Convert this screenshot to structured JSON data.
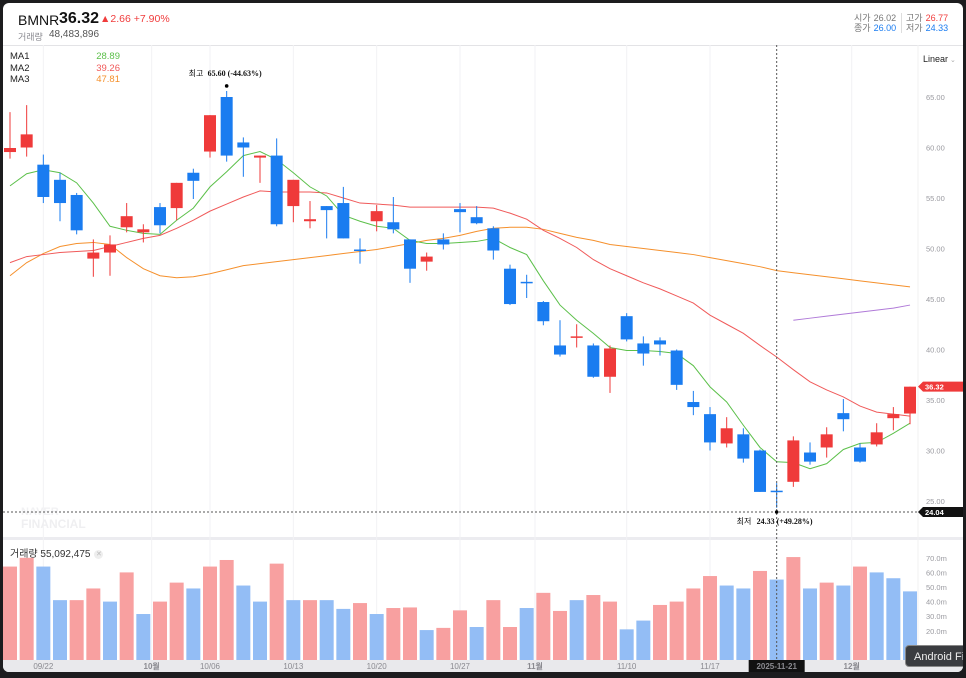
{
  "header": {
    "symbol": "BMNR",
    "price": "36.32",
    "change": "▲2.66 +7.90%",
    "volume_label": "거래량",
    "volume_value": "48,483,896",
    "open_label": "시가",
    "open_value": "26.02",
    "high_label": "고가",
    "high_value": "26.77",
    "close_label": "종가",
    "close_value": "26.00",
    "low_label": "저가",
    "low_value": "24.33"
  },
  "legend": [
    {
      "label": "MA1",
      "value": "28.89",
      "color": "#5cc04a"
    },
    {
      "label": "MA2",
      "value": "39.26",
      "color": "#f05a5a"
    },
    {
      "label": "MA3",
      "value": "47.81",
      "color": "#f5902c"
    }
  ],
  "scale_mode": "Linear",
  "annotations": {
    "high_label": "최고",
    "high_text": "65.60 (-44.63%)",
    "low_label": "최저",
    "low_text": "24.33 (+49.28%)"
  },
  "price_tag": "36.32",
  "crosshair_price": "24.04",
  "crosshair_date": "2025-11-21",
  "watermark": "NAVER FINANCIAL",
  "volume_header": {
    "label": "거래량",
    "value": "55,092,475"
  },
  "tooltip": "Android Fi",
  "colors": {
    "up": "#ef3a3a",
    "down": "#1a7cf0",
    "vol_up": "#f8a0a0",
    "vol_down": "#93bdf5",
    "ma4": "#b07ad8"
  },
  "chart_data": {
    "type": "candlestick",
    "y_ticks": [
      "65.00",
      "60.00",
      "55.00",
      "50.00",
      "45.00",
      "40.00",
      "35.00",
      "30.00",
      "25.00"
    ],
    "y_range": [
      24,
      68
    ],
    "volume_ticks": [
      "70.0m",
      "60.0m",
      "50.0m",
      "40.0m",
      "30.0m",
      "20.0m"
    ],
    "x_labels": [
      {
        "index": 2,
        "text": "09/22",
        "bold": false
      },
      {
        "index": 8.5,
        "text": "10월",
        "bold": true
      },
      {
        "index": 12,
        "text": "10/06",
        "bold": false
      },
      {
        "index": 17,
        "text": "10/13",
        "bold": false
      },
      {
        "index": 22,
        "text": "10/20",
        "bold": false
      },
      {
        "index": 27,
        "text": "10/27",
        "bold": false
      },
      {
        "index": 31.5,
        "text": "11월",
        "bold": true
      },
      {
        "index": 37,
        "text": "11/10",
        "bold": false
      },
      {
        "index": 42,
        "text": "11/17",
        "bold": false
      },
      {
        "index": 50.5,
        "text": "12월",
        "bold": true
      }
    ],
    "crosshair_index": 46,
    "high_index": 13,
    "low_index": 46,
    "ohlc": [
      [
        59.55,
        63.5,
        58.9,
        59.95
      ],
      [
        60.0,
        64.2,
        59.1,
        61.3
      ],
      [
        58.3,
        59.3,
        54.5,
        55.1
      ],
      [
        56.8,
        57.5,
        52.7,
        54.5
      ],
      [
        55.3,
        55.5,
        51.4,
        51.8
      ],
      [
        49.0,
        50.9,
        47.2,
        49.6
      ],
      [
        49.6,
        51.3,
        47.3,
        50.4
      ],
      [
        52.1,
        54.5,
        51.6,
        53.2
      ],
      [
        51.6,
        52.4,
        50.6,
        51.9
      ],
      [
        54.1,
        54.5,
        51.5,
        52.3
      ],
      [
        54.0,
        56.5,
        52.8,
        56.5
      ],
      [
        57.5,
        57.9,
        54.9,
        56.7
      ],
      [
        59.6,
        63.2,
        59.0,
        63.2
      ],
      [
        65.0,
        65.6,
        58.6,
        59.2
      ],
      [
        60.5,
        61.0,
        57.1,
        60.0
      ],
      [
        59.0,
        59.2,
        56.5,
        59.2
      ],
      [
        59.2,
        60.9,
        52.2,
        52.4
      ],
      [
        54.2,
        56.8,
        52.6,
        56.8
      ],
      [
        52.7,
        54.7,
        52.0,
        52.9
      ],
      [
        54.2,
        54.2,
        51.0,
        53.8
      ],
      [
        54.5,
        56.1,
        51.0,
        51.0
      ],
      [
        49.9,
        51.0,
        48.5,
        49.8
      ],
      [
        52.7,
        54.3,
        51.7,
        53.7
      ],
      [
        52.6,
        55.1,
        51.5,
        51.9
      ],
      [
        50.9,
        50.9,
        46.6,
        48.0
      ],
      [
        48.7,
        49.6,
        47.8,
        49.2
      ],
      [
        50.9,
        51.5,
        49.9,
        50.4
      ],
      [
        53.9,
        54.5,
        51.6,
        53.6
      ],
      [
        53.1,
        54.2,
        52.4,
        52.5
      ],
      [
        52.0,
        52.2,
        48.9,
        49.8
      ],
      [
        48.0,
        48.4,
        44.4,
        44.5
      ],
      [
        46.7,
        47.4,
        45.1,
        46.6
      ],
      [
        44.7,
        44.8,
        42.4,
        42.8
      ],
      [
        40.4,
        42.9,
        39.3,
        39.5
      ],
      [
        41.2,
        42.5,
        40.2,
        41.3
      ],
      [
        40.4,
        40.6,
        37.2,
        37.3
      ],
      [
        37.3,
        40.4,
        35.7,
        40.1
      ],
      [
        43.3,
        43.6,
        40.8,
        41.0
      ],
      [
        40.6,
        41.3,
        38.4,
        39.6
      ],
      [
        40.9,
        41.2,
        39.4,
        40.5
      ],
      [
        39.9,
        40.0,
        36.0,
        36.5
      ],
      [
        34.8,
        35.9,
        33.5,
        34.3
      ],
      [
        33.6,
        34.3,
        30.0,
        30.8
      ],
      [
        30.7,
        33.3,
        30.3,
        32.2
      ],
      [
        31.6,
        32.2,
        28.8,
        29.2
      ],
      [
        30.0,
        30.1,
        25.9,
        25.9
      ],
      [
        26.02,
        26.77,
        24.33,
        26.0
      ],
      [
        26.9,
        31.4,
        26.4,
        31.0
      ],
      [
        29.8,
        30.8,
        28.6,
        28.9
      ],
      [
        30.3,
        32.3,
        29.3,
        31.6
      ],
      [
        33.7,
        35.1,
        31.9,
        33.1
      ],
      [
        30.3,
        30.7,
        28.8,
        28.9
      ],
      [
        30.6,
        32.7,
        30.4,
        31.8
      ],
      [
        33.2,
        34.3,
        32.0,
        33.6
      ],
      [
        33.66,
        36.32,
        32.6,
        36.32
      ]
    ],
    "ma1": [
      56.2,
      57.4,
      57.8,
      57.5,
      56.5,
      54.5,
      52.2,
      51.8,
      51.5,
      51.4,
      52.8,
      54.0,
      56.1,
      57.6,
      59.2,
      59.6,
      58.8,
      57.5,
      56.1,
      55.2,
      53.3,
      52.7,
      52.2,
      52.0,
      50.8,
      50.5,
      50.5,
      50.6,
      50.7,
      51.0,
      50.1,
      49.4,
      46.8,
      44.4,
      42.9,
      41.6,
      40.2,
      39.9,
      39.9,
      39.8,
      39.6,
      38.4,
      36.3,
      34.8,
      32.5,
      30.3,
      28.89,
      28.8,
      28.2,
      28.7,
      30.1,
      30.7,
      30.8,
      31.7,
      32.7
    ],
    "ma2": [
      48.6,
      49.2,
      49.4,
      49.6,
      49.7,
      49.8,
      50.2,
      50.6,
      51.0,
      51.3,
      52.0,
      52.8,
      53.7,
      54.4,
      55.1,
      55.7,
      55.6,
      55.6,
      55.6,
      55.5,
      55.0,
      54.5,
      54.4,
      54.3,
      54.1,
      54.1,
      54.1,
      54.1,
      54.1,
      54.0,
      53.5,
      52.9,
      51.8,
      51.0,
      50.1,
      48.9,
      48.0,
      47.3,
      46.6,
      46.0,
      45.3,
      44.6,
      43.4,
      42.5,
      41.6,
      40.4,
      39.26,
      38.0,
      36.8,
      36.0,
      35.3,
      34.4,
      33.8,
      33.6,
      33.4
    ],
    "ma3": [
      47.3,
      48.6,
      49.5,
      50.2,
      50.5,
      50.6,
      50.4,
      49.1,
      48.0,
      47.3,
      47.1,
      47.2,
      47.5,
      47.9,
      48.3,
      48.5,
      48.7,
      48.9,
      49.1,
      49.3,
      49.5,
      49.7,
      49.9,
      50.2,
      50.5,
      50.8,
      51.0,
      51.3,
      51.7,
      52.0,
      52.1,
      52.1,
      51.9,
      51.5,
      51.1,
      50.8,
      50.4,
      50.2,
      50.0,
      49.8,
      49.6,
      49.4,
      49.1,
      48.8,
      48.5,
      48.2,
      47.81,
      47.6,
      47.4,
      47.2,
      47.0,
      46.8,
      46.6,
      46.4,
      46.2
    ],
    "ma4": {
      "start_index": 47,
      "values": [
        42.9,
        43.1,
        43.3,
        43.5,
        43.7,
        43.9,
        44.1,
        44.4
      ]
    },
    "volume_m": [
      64,
      70,
      64,
      41,
      41,
      49,
      40,
      60,
      31.5,
      40,
      53,
      49,
      64,
      68.5,
      51,
      40,
      66,
      41,
      41,
      41,
      35,
      39,
      31.5,
      35.6,
      36,
      20.5,
      22,
      34,
      22.6,
      41,
      22.6,
      35.6,
      46,
      33.6,
      41,
      44.5,
      40,
      21,
      27,
      37.7,
      40,
      49,
      57.5,
      51,
      49,
      61,
      55.1,
      70.5,
      49,
      53,
      51,
      64,
      60,
      56,
      47
    ],
    "volume_up": [
      1,
      1,
      0,
      0,
      1,
      1,
      0,
      1,
      0,
      1,
      1,
      0,
      1,
      1,
      0,
      0,
      1,
      0,
      1,
      0,
      0,
      1,
      0,
      1,
      1,
      0,
      1,
      1,
      0,
      1,
      1,
      0,
      1,
      1,
      0,
      1,
      1,
      0,
      0,
      1,
      1,
      1,
      1,
      0,
      0,
      1,
      0,
      1,
      0,
      1,
      0,
      1,
      0,
      0,
      0
    ]
  }
}
